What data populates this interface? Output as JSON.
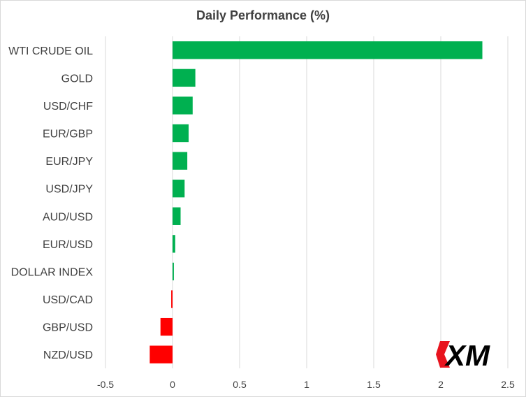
{
  "chart_data": {
    "type": "bar",
    "orientation": "horizontal",
    "title": "Daily Performance  (%)",
    "xlabel": "",
    "ylabel": "",
    "categories": [
      "WTI CRUDE OIL",
      "GOLD",
      "USD/CHF",
      "EUR/GBP",
      "EUR/JPY",
      "USD/JPY",
      "AUD/USD",
      "EUR/USD",
      "DOLLAR INDEX",
      "USD/CAD",
      "GBP/USD",
      "NZD/USD"
    ],
    "values": [
      2.31,
      0.17,
      0.15,
      0.12,
      0.11,
      0.09,
      0.06,
      0.02,
      0.01,
      -0.01,
      -0.09,
      -0.17
    ],
    "xlim": [
      -0.5,
      2.5
    ],
    "xticks": [
      -0.5,
      0,
      0.5,
      1,
      1.5,
      2,
      2.5
    ],
    "xtick_labels": [
      "-0.5",
      "0",
      "0.5",
      "1",
      "1.5",
      "2",
      "2.5"
    ],
    "grid": "vertical",
    "legend": "none",
    "colors": {
      "positive": "#00b050",
      "negative": "#ff0000",
      "gridline": "#d9d9d9",
      "text": "#404040"
    }
  },
  "watermark": {
    "text": "XM",
    "icon": "xm-logo-icon"
  }
}
